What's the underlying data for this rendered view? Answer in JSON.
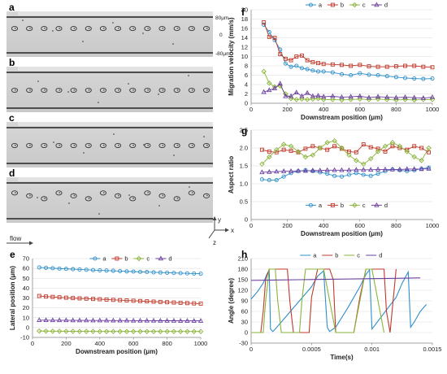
{
  "micrographs": {
    "panels": [
      {
        "letter": "a",
        "cells": 14,
        "y_levels": [
          0.44,
          0.5,
          0.44
        ]
      },
      {
        "letter": "b",
        "cells": 14,
        "y_levels": [
          0.5,
          0.5,
          0.5
        ]
      },
      {
        "letter": "c",
        "cells": 14,
        "y_levels": [
          0.5,
          0.5,
          0.5
        ]
      },
      {
        "letter": "d",
        "cells": 14,
        "y_levels": [
          0.44,
          0.5,
          0.56
        ]
      }
    ],
    "channel_labels": {
      "top": "80μm",
      "middle": "0",
      "bottom": "-80μm"
    },
    "flow_label": "flow",
    "axis_labels": {
      "y": "y",
      "x": "x",
      "z": "z"
    }
  },
  "colors": {
    "a": "#2e8fc9",
    "b": "#c0392b",
    "c": "#8ab43a",
    "d": "#6b3fa0"
  },
  "chart_data": [
    {
      "panel": "e",
      "type": "line",
      "xlabel": "Downstream position (μm)",
      "ylabel": "Lateral position (μm)",
      "xlim": [
        0,
        1000
      ],
      "ylim": [
        -10,
        70
      ],
      "xticks": [
        "0",
        "200",
        "400",
        "600",
        "800",
        "1000"
      ],
      "yticks": [
        "-10",
        "0",
        "10",
        "20",
        "30",
        "40",
        "50",
        "60",
        "70"
      ],
      "legend": [
        "a",
        "b",
        "c",
        "d"
      ],
      "series": [
        {
          "name": "a",
          "x": [
            40,
            80,
            120,
            160,
            200,
            240,
            280,
            320,
            360,
            400,
            440,
            480,
            520,
            560,
            600,
            640,
            680,
            720,
            760,
            800,
            840,
            880,
            920,
            960,
            1000
          ],
          "y": [
            61,
            60.6,
            60.2,
            59.8,
            59.5,
            59.2,
            58.9,
            58.6,
            58.3,
            58,
            57.8,
            57.6,
            57.3,
            57,
            56.8,
            56.5,
            56.3,
            56,
            55.8,
            55.6,
            55.4,
            55.2,
            55,
            54.8,
            54.6
          ]
        },
        {
          "name": "b",
          "x": [
            40,
            80,
            120,
            160,
            200,
            240,
            280,
            320,
            360,
            400,
            440,
            480,
            520,
            560,
            600,
            640,
            680,
            720,
            760,
            800,
            840,
            880,
            920,
            960,
            1000
          ],
          "y": [
            32,
            31.5,
            31.1,
            30.7,
            30.3,
            29.9,
            29.6,
            29.3,
            29,
            28.7,
            28.4,
            28.1,
            27.8,
            27.5,
            27.2,
            26.9,
            26.6,
            26.3,
            26,
            25.7,
            25.4,
            25.1,
            24.8,
            24.5,
            24.3
          ]
        },
        {
          "name": "c",
          "x": [
            40,
            80,
            120,
            160,
            200,
            240,
            280,
            320,
            360,
            400,
            440,
            480,
            520,
            560,
            600,
            640,
            680,
            720,
            760,
            800,
            840,
            880,
            920,
            960,
            1000
          ],
          "y": [
            -3.5,
            -3.6,
            -3.7,
            -3.7,
            -3.8,
            -3.8,
            -3.9,
            -3.9,
            -3.9,
            -4,
            -4,
            -4,
            -4,
            -4,
            -4,
            -4,
            -4,
            -4,
            -4,
            -4,
            -4,
            -4,
            -4,
            -4,
            -4
          ]
        },
        {
          "name": "d",
          "x": [
            40,
            80,
            120,
            160,
            200,
            240,
            280,
            320,
            360,
            400,
            440,
            480,
            520,
            560,
            600,
            640,
            680,
            720,
            760,
            800,
            840,
            880,
            920,
            960,
            1000
          ],
          "y": [
            7.5,
            7.5,
            7.4,
            7.4,
            7.4,
            7.3,
            7.3,
            7.3,
            7.2,
            7.2,
            7.2,
            7.1,
            7.1,
            7.1,
            7,
            7,
            7,
            7,
            6.9,
            6.9,
            6.9,
            6.8,
            6.8,
            6.8,
            6.8
          ]
        }
      ]
    },
    {
      "panel": "f",
      "type": "line",
      "xlabel": "Downstream position (μm)",
      "ylabel": "Migration velocity (mm/s)",
      "xlim": [
        0,
        1000
      ],
      "ylim": [
        0,
        20
      ],
      "xticks": [
        "0",
        "200",
        "400",
        "600",
        "800",
        "1000"
      ],
      "yticks": [
        "0",
        "2",
        "4",
        "6",
        "8",
        "10",
        "12",
        "14",
        "16",
        "18",
        "20"
      ],
      "legend": [
        "a",
        "b",
        "c",
        "d"
      ],
      "series": [
        {
          "name": "a",
          "x": [
            70,
            100,
            130,
            160,
            190,
            220,
            250,
            280,
            310,
            340,
            370,
            400,
            450,
            500,
            550,
            600,
            650,
            700,
            750,
            800,
            850,
            900,
            950,
            1000
          ],
          "y": [
            16.8,
            15.2,
            13.5,
            11.5,
            8.5,
            7.8,
            8,
            7.5,
            7.3,
            7,
            6.8,
            6.8,
            6.6,
            6.2,
            6,
            6.4,
            6.1,
            6,
            5.8,
            5.6,
            5.4,
            5.3,
            5.2,
            5.3
          ]
        },
        {
          "name": "b",
          "x": [
            70,
            100,
            130,
            160,
            190,
            220,
            250,
            280,
            310,
            340,
            370,
            400,
            450,
            500,
            550,
            600,
            650,
            700,
            750,
            800,
            850,
            900,
            950,
            1000
          ],
          "y": [
            17.3,
            14.2,
            14,
            10.5,
            9.5,
            9.2,
            10,
            10.2,
            9.2,
            8.8,
            8.6,
            8.4,
            8.3,
            8.2,
            8,
            8.2,
            7.9,
            7.8,
            7.8,
            7.9,
            8,
            8,
            7.8,
            7.7
          ]
        },
        {
          "name": "c",
          "x": [
            70,
            100,
            130,
            160,
            190,
            220,
            250,
            280,
            310,
            340,
            370,
            400,
            450,
            500,
            550,
            600,
            650,
            700,
            750,
            800,
            850,
            900,
            950,
            1000
          ],
          "y": [
            6.8,
            4.3,
            3.5,
            3.7,
            2,
            1,
            0.8,
            0.9,
            0.8,
            0.9,
            1,
            0.8,
            0.8,
            0.7,
            0.8,
            0.9,
            0.8,
            0.9,
            0.8,
            0.7,
            0.8,
            0.7,
            0.8,
            0.8
          ]
        },
        {
          "name": "d",
          "x": [
            70,
            100,
            130,
            160,
            190,
            220,
            250,
            280,
            310,
            340,
            370,
            400,
            450,
            500,
            550,
            600,
            650,
            700,
            750,
            800,
            850,
            900,
            950,
            1000
          ],
          "y": [
            2.4,
            2.8,
            3.2,
            4.2,
            1.5,
            1.5,
            2.3,
            1.5,
            2.2,
            1.5,
            1.6,
            1.4,
            1.5,
            1.3,
            1.4,
            1.5,
            1.2,
            1.4,
            1.3,
            1.2,
            1.3,
            1.2,
            1.1,
            1.3
          ]
        }
      ]
    },
    {
      "panel": "g",
      "type": "line",
      "xlabel": "Downstream position (μm)",
      "ylabel": "Aspect ratio",
      "xlim": [
        0,
        1000
      ],
      "ylim": [
        0,
        2.5
      ],
      "xticks": [
        "0",
        "200",
        "400",
        "600",
        "800",
        "1000"
      ],
      "yticks": [
        "0",
        "0.5",
        "1.0",
        "1.5",
        "2.0",
        "2.5"
      ],
      "legend": [
        "a",
        "b",
        "c",
        "d"
      ],
      "series": [
        {
          "name": "a",
          "x": [
            60,
            100,
            140,
            180,
            220,
            260,
            300,
            340,
            380,
            420,
            460,
            500,
            540,
            580,
            620,
            660,
            700,
            740,
            780,
            820,
            860,
            900,
            940,
            980
          ],
          "y": [
            1.12,
            1.1,
            1.1,
            1.2,
            1.3,
            1.35,
            1.38,
            1.35,
            1.32,
            1.28,
            1.22,
            1.2,
            1.25,
            1.3,
            1.25,
            1.22,
            1.28,
            1.35,
            1.4,
            1.38,
            1.35,
            1.38,
            1.42,
            1.45
          ]
        },
        {
          "name": "b",
          "x": [
            60,
            100,
            140,
            180,
            220,
            260,
            300,
            340,
            380,
            420,
            460,
            500,
            540,
            580,
            620,
            660,
            700,
            740,
            780,
            820,
            860,
            900,
            940,
            980
          ],
          "y": [
            1.95,
            1.9,
            1.88,
            1.95,
            1.92,
            1.88,
            1.98,
            2.05,
            2,
            1.95,
            2.05,
            1.98,
            1.9,
            1.88,
            2.1,
            2.02,
            1.98,
            1.9,
            2.05,
            2.0,
            1.95,
            2.05,
            2.0,
            1.88
          ]
        },
        {
          "name": "c",
          "x": [
            60,
            100,
            140,
            180,
            220,
            260,
            300,
            340,
            380,
            420,
            460,
            500,
            540,
            580,
            620,
            660,
            700,
            740,
            780,
            820,
            860,
            900,
            940,
            980
          ],
          "y": [
            1.55,
            1.75,
            1.95,
            2.1,
            2.05,
            1.9,
            1.75,
            1.8,
            2.0,
            2.15,
            2.2,
            2.0,
            1.8,
            1.65,
            1.55,
            1.7,
            1.9,
            2.05,
            2.15,
            2.05,
            1.9,
            1.75,
            1.65,
            2.0
          ]
        },
        {
          "name": "d",
          "x": [
            60,
            100,
            140,
            180,
            220,
            260,
            300,
            340,
            380,
            420,
            460,
            500,
            540,
            580,
            620,
            660,
            700,
            740,
            780,
            820,
            860,
            900,
            940,
            980
          ],
          "y": [
            1.32,
            1.33,
            1.34,
            1.35,
            1.35,
            1.36,
            1.36,
            1.37,
            1.37,
            1.38,
            1.38,
            1.38,
            1.38,
            1.39,
            1.39,
            1.39,
            1.4,
            1.4,
            1.4,
            1.4,
            1.41,
            1.41,
            1.41,
            1.42
          ]
        }
      ]
    },
    {
      "panel": "h",
      "type": "line",
      "xlabel": "Time(s)",
      "ylabel": "Angle (degree)",
      "xlim": [
        0,
        0.0015
      ],
      "ylim": [
        -30,
        210
      ],
      "xticks": [
        "0",
        "0.0005",
        "0.001",
        "0.0015"
      ],
      "yticks": [
        "-30",
        "0",
        "30",
        "60",
        "90",
        "120",
        "150",
        "180",
        "210"
      ],
      "legend": [
        "a",
        "b",
        "c",
        "d"
      ],
      "series": [
        {
          "name": "a",
          "x": [
            0,
            5e-05,
            0.0001,
            0.00013,
            0.00015,
            0.00016,
            0.00018,
            0.0002,
            0.0003,
            0.0004,
            0.0005,
            0.00055,
            0.0006,
            0.00063,
            0.00065,
            0.0007,
            0.0008,
            0.0009,
            0.00095,
            0.00098,
            0.001,
            0.0011,
            0.0012,
            0.00125,
            0.0013,
            0.00132,
            0.00135,
            0.0014,
            0.00145
          ],
          "y": [
            95,
            115,
            140,
            165,
            178,
            10,
            3,
            10,
            50,
            90,
            130,
            160,
            175,
            15,
            3,
            15,
            70,
            130,
            165,
            178,
            10,
            55,
            100,
            140,
            172,
            15,
            30,
            60,
            80
          ]
        },
        {
          "name": "b",
          "x": [
            8e-05,
            0.0001,
            0.00012,
            0.00015,
            0.00018,
            0.00025,
            0.0003,
            0.00032,
            0.00035,
            0.0004,
            0.00045,
            0.00048,
            0.0005,
            0.00055,
            0.0006,
            0.00065,
            0.00068,
            0.0007,
            0.0008,
            0.00085,
            0.0009,
            0.00095,
            0.001,
            0.00105,
            0.0011,
            0.00112,
            0.00115,
            0.0012
          ],
          "y": [
            0,
            60,
            150,
            180,
            180,
            180,
            180,
            90,
            0,
            0,
            0,
            0,
            100,
            180,
            180,
            180,
            150,
            0,
            0,
            0,
            100,
            180,
            180,
            180,
            180,
            60,
            0,
            180
          ]
        },
        {
          "name": "c",
          "x": [
            0,
            5e-05,
            0.0001,
            0.00012,
            0.00015,
            0.00018,
            0.0002,
            0.00022,
            0.00025,
            0.0003,
            0.00035,
            0.0004,
            0.00042,
            0.00045,
            0.0005,
            0.00055,
            0.0006,
            0.00065,
            0.0007,
            0.00075,
            0.0008,
            0.00085,
            0.0009,
            0.00095,
            0.001,
            0.00105,
            0.0011
          ],
          "y": [
            0,
            0,
            0,
            90,
            180,
            180,
            180,
            90,
            0,
            0,
            0,
            0,
            90,
            180,
            180,
            180,
            180,
            90,
            0,
            0,
            0,
            0,
            90,
            180,
            180,
            90,
            0
          ]
        },
        {
          "name": "d",
          "x": [
            0,
            0.0002,
            0.0004,
            0.0006,
            0.0008,
            0.001,
            0.0012,
            0.0014
          ],
          "y": [
            148,
            149,
            150,
            151,
            152,
            153,
            154,
            155
          ]
        }
      ]
    }
  ]
}
